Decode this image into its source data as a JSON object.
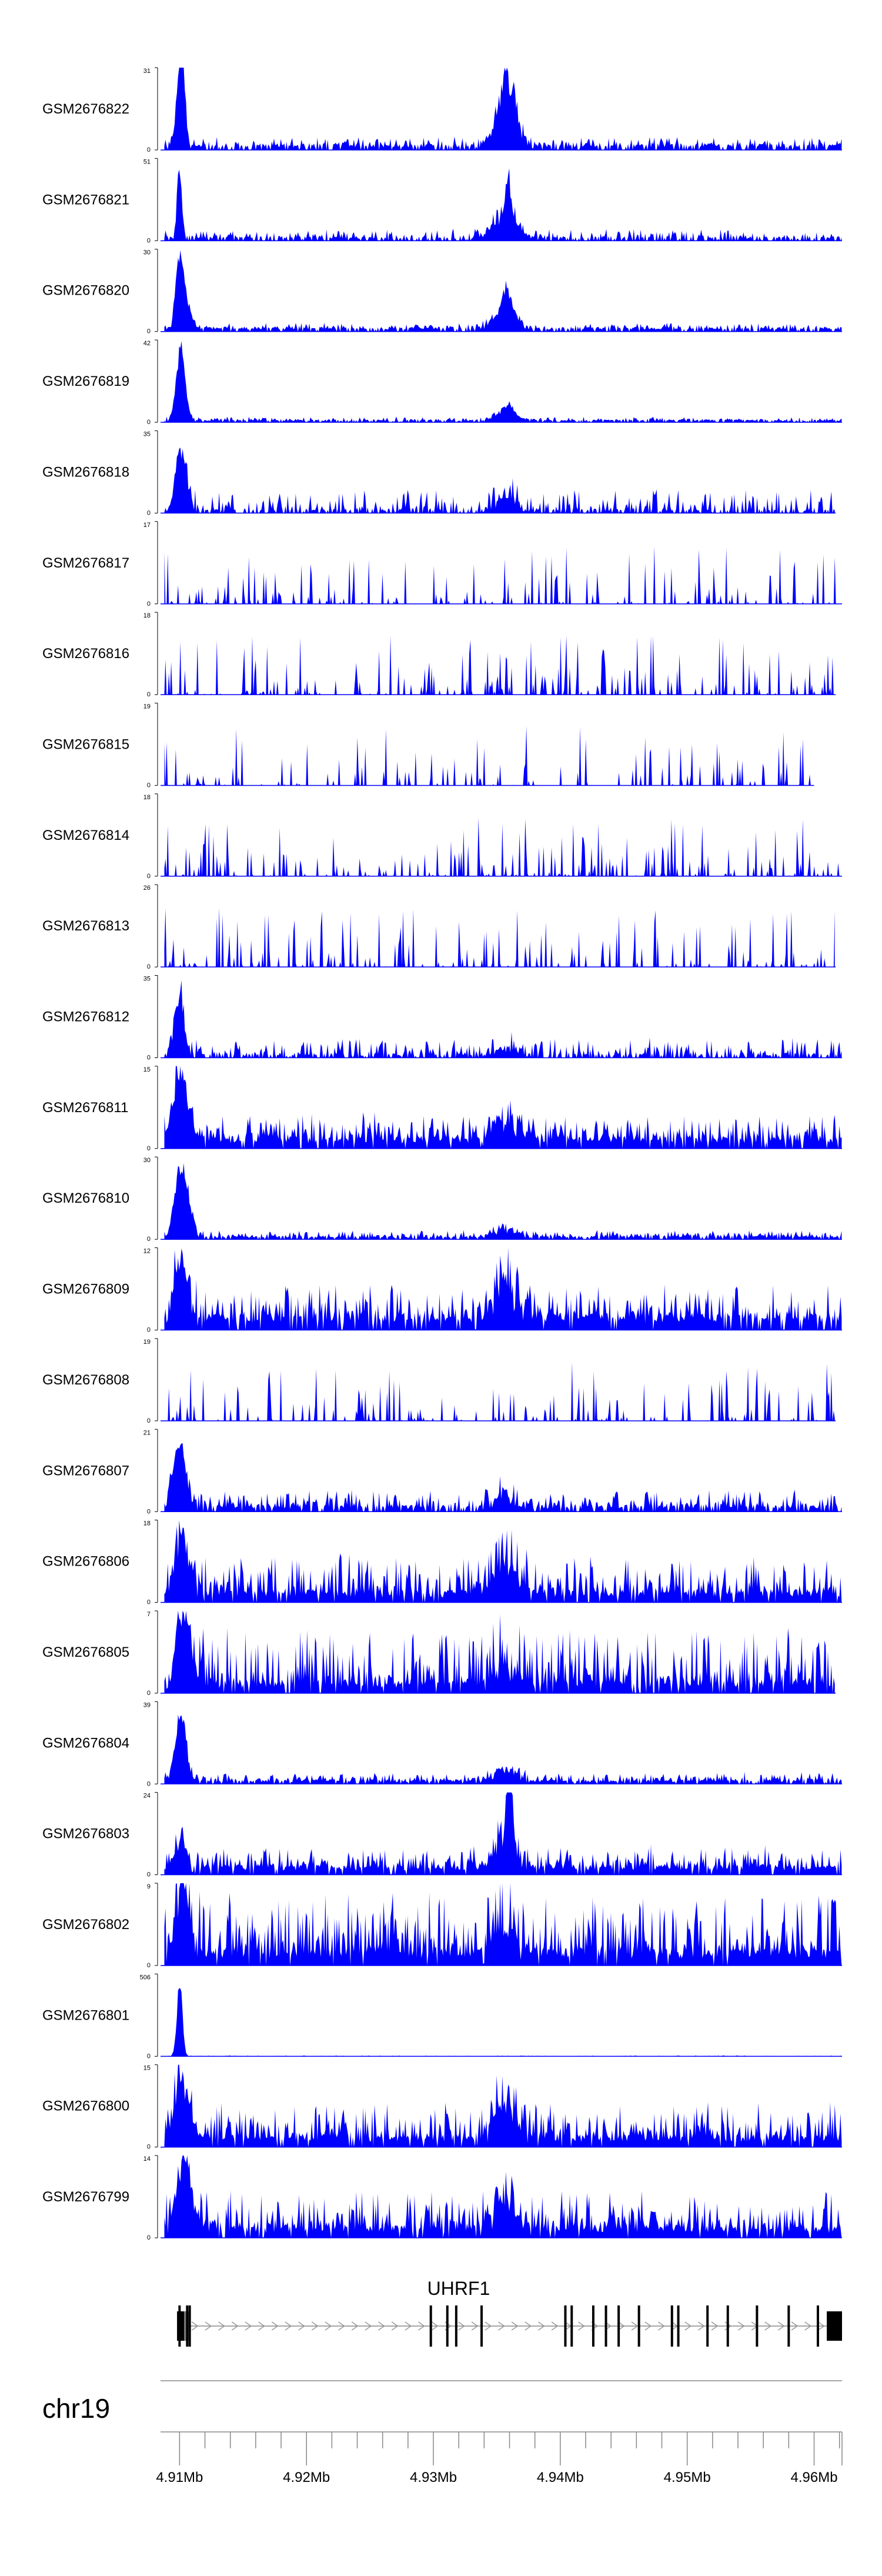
{
  "chart_data": {
    "type": "area",
    "title": "",
    "chromosome": "chr19",
    "xlim": [
      4.9085,
      4.9622
    ],
    "x_unit": "Mb",
    "x_ticks": [
      4.91,
      4.92,
      4.93,
      4.94,
      4.95,
      4.96
    ],
    "x_tick_labels": [
      "4.91Mb",
      "4.92Mb",
      "4.93Mb",
      "4.94Mb",
      "4.95Mb",
      "4.96Mb"
    ],
    "x_minor_step": 0.002,
    "fill_color": "#0000ff",
    "tracks": [
      {
        "name": "GSM2676822",
        "ymax": 31,
        "ymin": 0,
        "end": 4.9622,
        "hot": 0.6,
        "peaks": [
          [
            4.91,
            1.0,
            0.0004
          ],
          [
            4.9103,
            0.55,
            0.0003
          ],
          [
            4.9356,
            0.55,
            0.0004
          ],
          [
            4.9363,
            0.35,
            0.0004
          ]
        ],
        "base": 0.07,
        "noise": 0.1,
        "gap": 0.25
      },
      {
        "name": "GSM2676821",
        "ymax": 51,
        "ymin": 0,
        "end": 4.9622,
        "hot": 0.5,
        "peaks": [
          [
            4.91,
            1.0,
            0.00025
          ],
          [
            4.9359,
            0.45,
            0.00025
          ]
        ],
        "base": 0.05,
        "noise": 0.1,
        "gap": 0.3
      },
      {
        "name": "GSM2676820",
        "ymax": 30,
        "ymin": 0,
        "end": 4.9622,
        "hot": 0.3,
        "peaks": [
          [
            4.91,
            1.0,
            0.0004
          ],
          [
            4.9106,
            0.35,
            0.0005
          ],
          [
            4.9358,
            0.3,
            0.0004
          ]
        ],
        "base": 0.05,
        "noise": 0.06,
        "gap": 0.2
      },
      {
        "name": "GSM2676819",
        "ymax": 42,
        "ymin": 0,
        "end": 4.9622,
        "hot": 0.12,
        "peaks": [
          [
            4.9101,
            1.0,
            0.0005
          ],
          [
            4.9359,
            0.12,
            0.0005
          ]
        ],
        "base": 0.03,
        "noise": 0.04,
        "gap": 0.2
      },
      {
        "name": "GSM2676818",
        "ymax": 35,
        "ymin": 0,
        "end": 4.9617,
        "hot": 0.2,
        "peaks": [
          [
            4.9101,
            0.85,
            0.0006
          ]
        ],
        "base": 0.05,
        "noise": 0.25,
        "gap": 0.35
      },
      {
        "name": "GSM2676817",
        "ymax": 17,
        "ymin": 0,
        "end": 4.9622,
        "hot": 0.0,
        "peaks": [],
        "base": 0.0,
        "noise": 0.6,
        "gap": 0.65
      },
      {
        "name": "GSM2676816",
        "ymax": 18,
        "ymin": 0,
        "end": 4.9617,
        "hot": 0.0,
        "peaks": [],
        "base": 0.0,
        "noise": 0.6,
        "gap": 0.6
      },
      {
        "name": "GSM2676815",
        "ymax": 19,
        "ymin": 0,
        "end": 4.96,
        "hot": 0.0,
        "peaks": [],
        "base": 0.0,
        "noise": 0.6,
        "gap": 0.72
      },
      {
        "name": "GSM2676814",
        "ymax": 18,
        "ymin": 0,
        "end": 4.9622,
        "hot": 0.0,
        "peaks": [],
        "base": 0.0,
        "noise": 0.6,
        "gap": 0.65
      },
      {
        "name": "GSM2676813",
        "ymax": 26,
        "ymin": 0,
        "end": 4.9617,
        "hot": 0.0,
        "peaks": [],
        "base": 0.0,
        "noise": 0.6,
        "gap": 0.65
      },
      {
        "name": "GSM2676812",
        "ymax": 35,
        "ymin": 0,
        "end": 4.9622,
        "hot": 0.15,
        "peaks": [
          [
            4.91,
            0.8,
            0.0005
          ]
        ],
        "base": 0.05,
        "noise": 0.2,
        "gap": 0.35
      },
      {
        "name": "GSM2676811",
        "ymax": 15,
        "ymin": 0,
        "end": 4.9622,
        "hot": 0.3,
        "peaks": [
          [
            4.9101,
            0.9,
            0.0008
          ]
        ],
        "base": 0.15,
        "noise": 0.3,
        "gap": 0.08
      },
      {
        "name": "GSM2676810",
        "ymax": 30,
        "ymin": 0,
        "end": 4.9622,
        "hot": 0.12,
        "peaks": [
          [
            4.91,
            0.9,
            0.0006
          ],
          [
            4.9107,
            0.35,
            0.0005
          ]
        ],
        "base": 0.04,
        "noise": 0.08,
        "gap": 0.15
      },
      {
        "name": "GSM2676809",
        "ymax": 12,
        "ymin": 0,
        "end": 4.9622,
        "hot": 0.65,
        "peaks": [
          [
            4.9101,
            0.8,
            0.0008
          ]
        ],
        "base": 0.2,
        "noise": 0.4,
        "gap": 0.1
      },
      {
        "name": "GSM2676808",
        "ymax": 19,
        "ymin": 0,
        "end": 4.9617,
        "hot": 0.0,
        "peaks": [],
        "base": 0.0,
        "noise": 0.6,
        "gap": 0.65
      },
      {
        "name": "GSM2676807",
        "ymax": 21,
        "ymin": 0,
        "end": 4.9622,
        "hot": 0.2,
        "peaks": [
          [
            4.91,
            0.9,
            0.0007
          ]
        ],
        "base": 0.08,
        "noise": 0.2,
        "gap": 0.2
      },
      {
        "name": "GSM2676806",
        "ymax": 18,
        "ymin": 0,
        "end": 4.9622,
        "hot": 0.45,
        "peaks": [
          [
            4.9102,
            0.8,
            0.0008
          ]
        ],
        "base": 0.15,
        "noise": 0.45,
        "gap": 0.08
      },
      {
        "name": "GSM2676805",
        "ymax": 7,
        "ymin": 0,
        "end": 4.9617,
        "hot": 0.3,
        "peaks": [
          [
            4.9103,
            0.9,
            0.0008
          ]
        ],
        "base": 0.15,
        "noise": 0.55,
        "gap": 0.08
      },
      {
        "name": "GSM2676804",
        "ymax": 39,
        "ymin": 0,
        "end": 4.9622,
        "hot": 0.18,
        "peaks": [
          [
            4.9101,
            0.9,
            0.0006
          ]
        ],
        "base": 0.05,
        "noise": 0.1,
        "gap": 0.15
      },
      {
        "name": "GSM2676803",
        "ymax": 24,
        "ymin": 0,
        "end": 4.9622,
        "hot": 0.55,
        "peaks": [
          [
            4.936,
            1.0,
            0.0003
          ],
          [
            4.9101,
            0.4,
            0.0006
          ]
        ],
        "base": 0.12,
        "noise": 0.25,
        "gap": 0.1
      },
      {
        "name": "GSM2676802",
        "ymax": 9,
        "ymin": 0,
        "end": 4.9622,
        "hot": 0.4,
        "peaks": [
          [
            4.9103,
            0.8,
            0.0008
          ]
        ],
        "base": 0.2,
        "noise": 0.6,
        "gap": 0.05
      },
      {
        "name": "GSM2676801",
        "ymax": 506,
        "ymin": 0,
        "end": 4.9622,
        "hot": 0.0,
        "peaks": [
          [
            4.91,
            1.0,
            0.0003
          ]
        ],
        "base": 0.0,
        "noise": 0.01,
        "gap": 0.1
      },
      {
        "name": "GSM2676800",
        "ymax": 15,
        "ymin": 0,
        "end": 4.9622,
        "hot": 0.55,
        "peaks": [
          [
            4.9102,
            0.75,
            0.0008
          ]
        ],
        "base": 0.15,
        "noise": 0.45,
        "gap": 0.08
      },
      {
        "name": "GSM2676799",
        "ymax": 14,
        "ymin": 0,
        "end": 4.9622,
        "hot": 0.5,
        "peaks": [
          [
            4.9104,
            0.9,
            0.0008
          ]
        ],
        "base": 0.15,
        "noise": 0.45,
        "gap": 0.08
      }
    ],
    "hotspot": {
      "center": 4.9357,
      "width": 0.0012
    },
    "gene": {
      "name": "UHRF1",
      "start": 4.91,
      "end": 4.9622,
      "strand": "+",
      "utr5": [
        4.9098,
        4.9106
      ],
      "utr3": [
        4.961,
        4.9622
      ],
      "exons": [
        4.91,
        4.9106,
        4.9108,
        4.9298,
        4.9311,
        4.9318,
        4.9338,
        4.9404,
        4.9409,
        4.9426,
        4.9436,
        4.9446,
        4.9462,
        4.9488,
        4.9493,
        4.9516,
        4.9532,
        4.9555,
        4.958,
        4.9603
      ]
    }
  }
}
